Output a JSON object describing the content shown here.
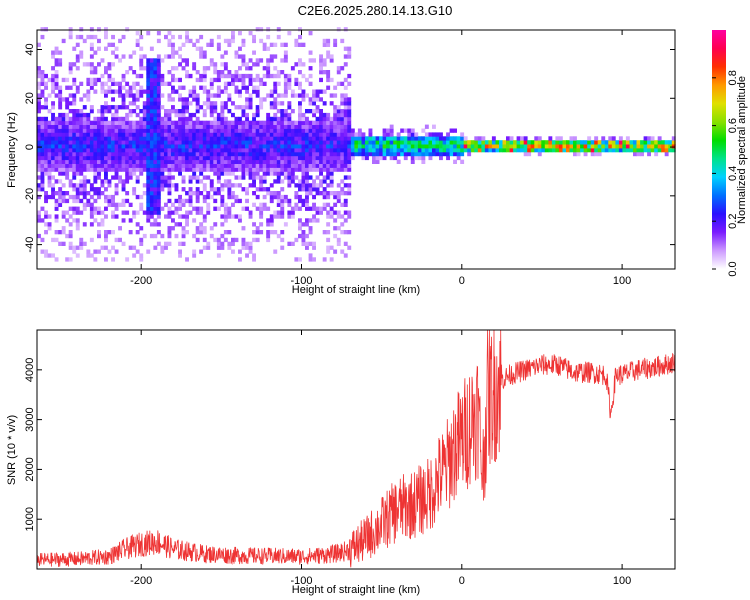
{
  "title": "C2E6.2025.280.14.13.G10",
  "chart_data": [
    {
      "type": "heatmap",
      "xlabel": "Height of straight line (km)",
      "ylabel": "Frequency (Hz)",
      "xlim": [
        -265,
        133
      ],
      "ylim": [
        -50,
        48
      ],
      "xticks": [
        -200,
        -100,
        0,
        100
      ],
      "yticks": [
        -40,
        -20,
        0,
        20,
        40
      ],
      "colorbar": {
        "label": "Normalized spectral amplitude",
        "range": [
          0,
          1
        ],
        "ticks": [
          0.0,
          0.2,
          0.4,
          0.6,
          0.8
        ],
        "tick_labels": [
          "0.0",
          "0.2",
          "0.4",
          "0.6",
          "0.8"
        ],
        "colormap": [
          "#ffffff",
          "#cc99ff",
          "#7a1bff",
          "#2a10ff",
          "#0070ff",
          "#00d2ff",
          "#00e38a",
          "#00dd00",
          "#88e000",
          "#e0e000",
          "#ff9a00",
          "#ff3000",
          "#ff0050",
          "#ff00a0"
        ]
      },
      "regions": [
        {
          "x_range": [
            -265,
            -70
          ],
          "description_level": "noisy broadband",
          "core_freq_half_width": 10,
          "scatter_freq_half_width": 48,
          "core_amplitude": 0.22
        },
        {
          "x_range": [
            -70,
            0
          ],
          "description_level": "narrowing band",
          "core_freq_half_width": 4,
          "scatter_freq_half_width": 8,
          "core_amplitude": 0.45
        },
        {
          "x_range": [
            0,
            133
          ],
          "description_level": "narrow tone",
          "core_freq_half_width": 2,
          "scatter_freq_half_width": 4,
          "core_amplitude": 0.65
        }
      ],
      "features": [
        {
          "x": -193,
          "freq_range": [
            -28,
            36
          ],
          "note": "vertical streak"
        }
      ]
    },
    {
      "type": "line",
      "xlabel": "Height of straight line (km)",
      "ylabel": "SNR (10 * v/v)",
      "xlim": [
        -265,
        133
      ],
      "ylim": [
        0,
        4800
      ],
      "xticks": [
        -200,
        -100,
        0,
        100
      ],
      "yticks": [
        1000,
        2000,
        3000,
        4000
      ],
      "series": [
        {
          "color": "#ee3333",
          "x": [
            -265,
            -240,
            -220,
            -210,
            -200,
            -190,
            -180,
            -160,
            -140,
            -120,
            -100,
            -90,
            -80,
            -70,
            -60,
            -50,
            -40,
            -30,
            -20,
            -15,
            -10,
            -5,
            0,
            5,
            10,
            13,
            16,
            20,
            25,
            30,
            40,
            50,
            60,
            70,
            80,
            90,
            93,
            96,
            100,
            110,
            120,
            133
          ],
          "y": [
            180,
            200,
            250,
            400,
            500,
            550,
            400,
            300,
            270,
            260,
            250,
            270,
            300,
            380,
            600,
            900,
            1200,
            1300,
            1500,
            1800,
            2000,
            2400,
            2600,
            2900,
            3200,
            1900,
            3400,
            3600,
            3800,
            3900,
            4000,
            4100,
            4100,
            3950,
            3950,
            3900,
            3100,
            3900,
            3900,
            4000,
            4050,
            4150
          ]
        }
      ]
    }
  ]
}
